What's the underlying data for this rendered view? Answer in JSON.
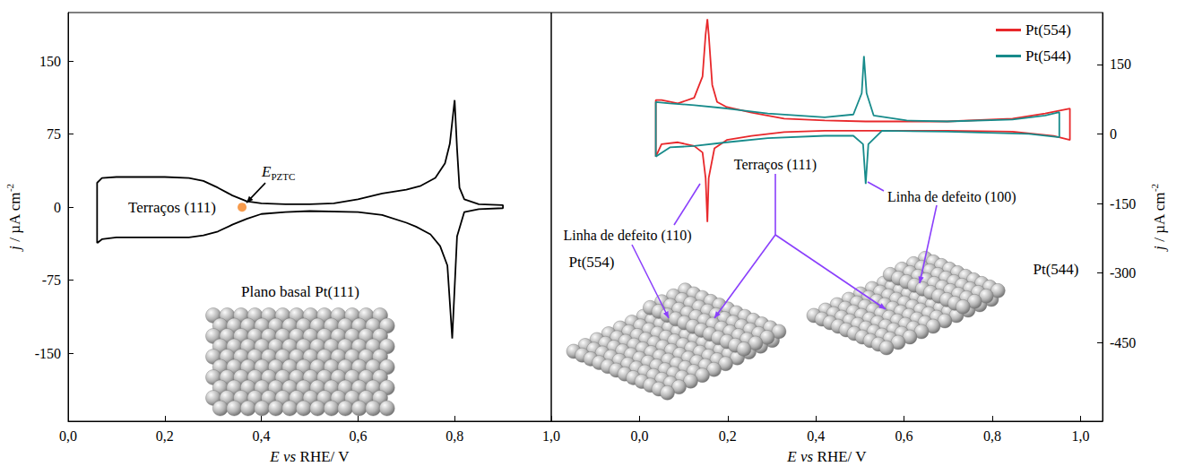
{
  "chart_data": [
    {
      "type": "line",
      "x_label": [
        {
          "text": "E vs",
          "style": "italic"
        },
        {
          "text": " RHE/ V"
        }
      ],
      "y_label": [
        {
          "text": "j",
          "style": "italic"
        },
        {
          "text": " / µA cm"
        },
        {
          "text": "-2",
          "style": "superscript"
        }
      ],
      "xlim": [
        0,
        1
      ],
      "xticks": [
        {
          "value": 0,
          "label": "0,0"
        },
        {
          "value": 0.2,
          "label": "0,2"
        },
        {
          "value": 0.4,
          "label": "0,4"
        },
        {
          "value": 0.6,
          "label": "0,6"
        },
        {
          "value": 0.8,
          "label": "0,8"
        },
        {
          "value": 1,
          "label": "1,0"
        }
      ],
      "ylim": [
        -220,
        200
      ],
      "yticks": [
        -150,
        -75,
        0,
        75,
        150
      ],
      "grid": false,
      "series": [
        {
          "color": "#000000",
          "x": [
            0.06,
            0.06,
            0.07,
            0.1,
            0.2,
            0.25,
            0.28,
            0.31,
            0.34,
            0.37,
            0.4,
            0.45,
            0.5,
            0.55,
            0.6,
            0.65,
            0.7,
            0.73,
            0.76,
            0.78,
            0.79,
            0.8,
            0.805,
            0.81,
            0.82,
            0.85,
            0.9,
            0.9,
            0.85,
            0.82,
            0.805,
            0.795,
            0.785,
            0.77,
            0.75,
            0.72,
            0.7,
            0.65,
            0.6,
            0.5,
            0.45,
            0.4,
            0.37,
            0.34,
            0.31,
            0.28,
            0.25,
            0.2,
            0.1,
            0.07,
            0.06
          ],
          "values": [
            -37,
            25,
            30,
            31,
            31,
            30,
            27,
            20,
            12,
            6,
            4,
            3,
            3,
            4,
            8,
            14,
            18,
            22,
            30,
            45,
            65,
            110,
            60,
            20,
            8,
            3,
            2,
            -1,
            -2,
            -5,
            -30,
            -135,
            -60,
            -40,
            -28,
            -20,
            -16,
            -8,
            -5,
            -4,
            -5,
            -7,
            -12,
            -18,
            -25,
            -29,
            -31,
            -31,
            -31,
            -33,
            -37
          ]
        }
      ],
      "points": [
        {
          "x": 0.36,
          "y": 0,
          "color": "#f5821f",
          "label": [
            {
              "text": "E",
              "style": "italic"
            },
            {
              "text": "PZTC",
              "style": "subscript"
            }
          ]
        }
      ],
      "annotations": {
        "terraces": "Terraços (111)",
        "model": "Plano basal Pt(111)"
      }
    },
    {
      "type": "line",
      "x_label": [
        {
          "text": "E vs",
          "style": "italic"
        },
        {
          "text": " RHE/ V"
        }
      ],
      "y_label": [
        {
          "text": "j",
          "style": "italic"
        },
        {
          "text": " / µA cm"
        },
        {
          "text": "-2",
          "style": "superscript"
        }
      ],
      "xlim": [
        -0.2,
        1.05
      ],
      "xticks": [
        {
          "value": 0,
          "label": "0,0"
        },
        {
          "value": 0.2,
          "label": "0,2"
        },
        {
          "value": 0.4,
          "label": "0,4"
        },
        {
          "value": 0.6,
          "label": "0,6"
        },
        {
          "value": 0.8,
          "label": "0,8"
        },
        {
          "value": 1,
          "label": "1,0"
        }
      ],
      "ylim": [
        -620,
        262
      ],
      "yticks": [
        -450,
        -300,
        -150,
        0,
        150
      ],
      "grid": false,
      "legend": "upper right",
      "series": [
        {
          "name": "Pt(554)",
          "color": "#e8282b",
          "x": [
            0.037,
            0.037,
            0.05,
            0.087,
            0.124,
            0.143,
            0.15,
            0.154,
            0.157,
            0.165,
            0.176,
            0.198,
            0.254,
            0.328,
            0.42,
            0.513,
            0.698,
            0.846,
            0.92,
            0.976,
            0.976,
            0.939,
            0.846,
            0.698,
            0.513,
            0.42,
            0.328,
            0.254,
            0.198,
            0.17,
            0.157,
            0.154,
            0.15,
            0.143,
            0.124,
            0.087,
            0.05,
            0.037
          ],
          "values": [
            -49,
            73,
            73,
            66,
            78,
            124,
            215,
            248,
            215,
            106,
            69,
            58,
            46,
            33,
            29,
            27,
            27,
            33,
            44,
            55,
            -13,
            -4,
            5,
            7,
            7,
            7,
            4,
            -4,
            -13,
            -31,
            -95,
            -190,
            -95,
            -40,
            -26,
            -18,
            -22,
            -49
          ]
        },
        {
          "name": "Pt(544)",
          "color": "#178b8b",
          "x": [
            0.037,
            0.037,
            0.069,
            0.124,
            0.198,
            0.291,
            0.42,
            0.485,
            0.504,
            0.509,
            0.515,
            0.531,
            0.606,
            0.698,
            0.846,
            0.92,
            0.952,
            0.952,
            0.883,
            0.698,
            0.55,
            0.519,
            0.513,
            0.507,
            0.485,
            0.42,
            0.291,
            0.198,
            0.124,
            0.069,
            0.037
          ],
          "values": [
            -49,
            69,
            66,
            62,
            55,
            44,
            36,
            42,
            88,
            168,
            88,
            40,
            29,
            27,
            31,
            40,
            47,
            -7,
            0,
            5,
            7,
            -22,
            -108,
            -22,
            -4,
            -4,
            -9,
            -18,
            -26,
            -29,
            -49
          ]
        }
      ],
      "annotations": {
        "terraces": "Terraços (111)",
        "step_110": "Linha de defeito (110)",
        "step_100": "Linha de defeito (100)",
        "model_554": "Pt(554)",
        "model_544": "Pt(544)"
      }
    }
  ]
}
